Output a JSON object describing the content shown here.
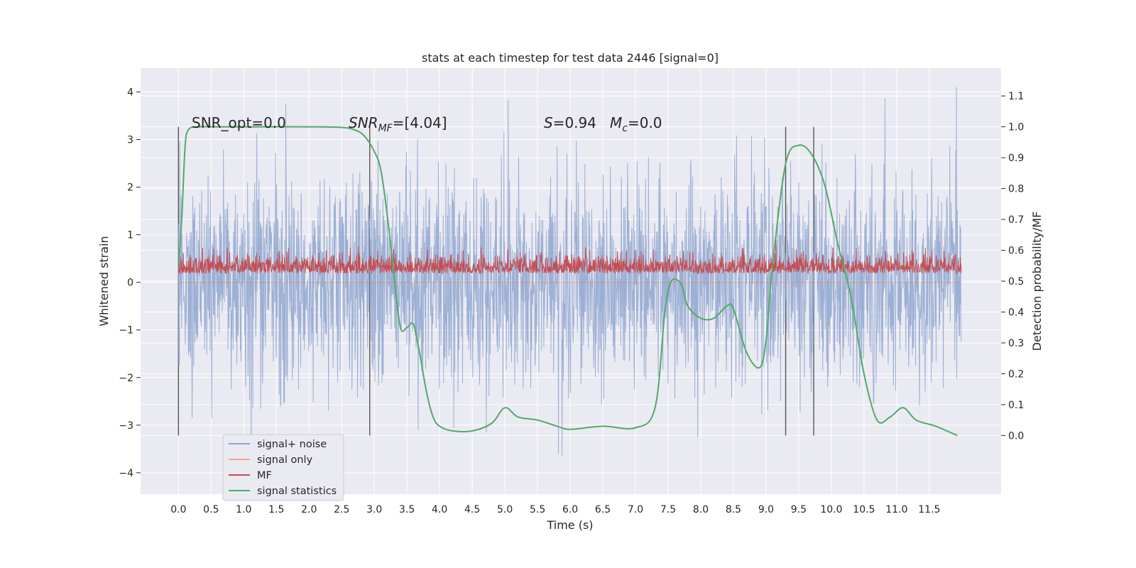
{
  "chart_data": {
    "type": "line",
    "title": "stats at each timestep for test data 2446 [signal=0]",
    "xlabel": "Time (s)",
    "ylabel_left": "Whitened strain",
    "ylabel_right": "Detection probability/MF",
    "xlim": [
      -0.58,
      12.6
    ],
    "ylim_left": [
      -4.45,
      4.5
    ],
    "ylim_right": [
      -0.19,
      1.19
    ],
    "x_ticks": [
      "0.0",
      "0.5",
      "1.0",
      "1.5",
      "2.0",
      "2.5",
      "3.0",
      "3.5",
      "4.0",
      "4.5",
      "5.0",
      "5.5",
      "6.0",
      "6.5",
      "7.0",
      "7.5",
      "8.0",
      "8.5",
      "9.0",
      "9.5",
      "10.0",
      "10.5",
      "11.0",
      "11.5"
    ],
    "y_ticks_left": [
      "4",
      "3",
      "2",
      "1",
      "0",
      "−1",
      "−2",
      "−3",
      "−4"
    ],
    "y_ticks_right": [
      "1.1",
      "1.0",
      "0.9",
      "0.8",
      "0.7",
      "0.6",
      "0.5",
      "0.4",
      "0.3",
      "0.2",
      "0.1",
      "0.0"
    ],
    "grid": true,
    "legend_position": "lower-left",
    "colors": {
      "background": "#eaeaf2",
      "signal_noise": "#4c72b0",
      "signal_only": "#dd8452",
      "mf": "#c44e52",
      "signal_statistics": "#55a868",
      "vlines": "#555555"
    },
    "annotations": {
      "snr_opt": "SNR_opt=0.0",
      "snr_mf_italic": "SNR",
      "snr_mf_sub": "MF",
      "snr_mf_value": "=[4.04]",
      "s_italic": "S",
      "s_value": "=0.94",
      "mc_italic": "M",
      "mc_sub": "c",
      "mc_value": "=0.0"
    },
    "series": [
      {
        "name": "signal+ noise",
        "axis": "left",
        "x_range": [
          0.0,
          11.99
        ],
        "typical_range": [
          -2.6,
          2.6
        ],
        "extreme_range": [
          -4.0,
          4.1
        ]
      },
      {
        "name": "signal only",
        "axis": "left",
        "x": [
          0.0,
          11.99
        ],
        "y": [
          0.0,
          0.0
        ]
      },
      {
        "name": "MF",
        "axis": "right",
        "x_range": [
          0.0,
          11.99
        ],
        "typical_range": [
          0.52,
          0.6
        ],
        "extreme_range": [
          0.5,
          0.66
        ]
      },
      {
        "name": "signal statistics",
        "axis": "right",
        "x": [
          0.0,
          0.05,
          0.1,
          0.15,
          0.3,
          0.6,
          1.0,
          2.0,
          2.5,
          2.7,
          2.85,
          3.0,
          3.1,
          3.2,
          3.3,
          3.4,
          3.5,
          3.6,
          3.7,
          3.8,
          3.9,
          4.0,
          4.2,
          4.5,
          4.8,
          5.0,
          5.2,
          5.5,
          5.8,
          6.0,
          6.5,
          7.0,
          7.3,
          7.45,
          7.55,
          7.7,
          7.8,
          8.0,
          8.2,
          8.4,
          8.5,
          8.7,
          8.9,
          9.0,
          9.1,
          9.3,
          9.5,
          9.7,
          9.9,
          10.1,
          10.3,
          10.5,
          10.7,
          10.9,
          11.1,
          11.3,
          11.6,
          11.93
        ],
        "y": [
          0.55,
          0.7,
          0.93,
          0.99,
          1.0,
          1.0,
          1.0,
          1.0,
          0.998,
          0.99,
          0.97,
          0.92,
          0.86,
          0.71,
          0.52,
          0.35,
          0.35,
          0.36,
          0.26,
          0.14,
          0.06,
          0.03,
          0.015,
          0.015,
          0.04,
          0.09,
          0.06,
          0.05,
          0.03,
          0.02,
          0.03,
          0.025,
          0.09,
          0.4,
          0.5,
          0.49,
          0.42,
          0.38,
          0.38,
          0.42,
          0.41,
          0.27,
          0.22,
          0.31,
          0.55,
          0.88,
          0.94,
          0.91,
          0.81,
          0.62,
          0.45,
          0.2,
          0.05,
          0.06,
          0.09,
          0.05,
          0.03,
          0.0
        ]
      }
    ],
    "vertical_lines_x": [
      0.0,
      2.93,
      9.3,
      9.73
    ]
  },
  "legend": {
    "items": [
      {
        "label": "signal+ noise",
        "color": "#8ea5cf"
      },
      {
        "label": "signal only",
        "color": "#e9a88a"
      },
      {
        "label": "MF",
        "color": "#c44e52"
      },
      {
        "label": "signal statistics",
        "color": "#55a868"
      }
    ]
  }
}
